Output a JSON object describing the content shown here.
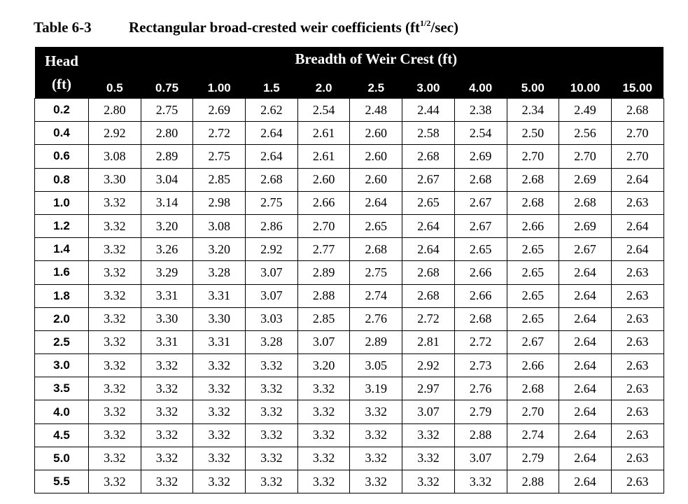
{
  "caption": {
    "number": "Table 6-3",
    "title": "Rectangular broad-crested weir coefficients (ft",
    "unit_exp": "1/2",
    "unit_tail": "/sec)"
  },
  "table": {
    "head_label_line1": "Head",
    "head_label_line2": "(ft)",
    "breadth_label": "Breadth of Weir Crest (ft)",
    "breadths": [
      "0.5",
      "0.75",
      "1.00",
      "1.5",
      "2.0",
      "2.5",
      "3.00",
      "4.00",
      "5.00",
      "10.00",
      "15.00"
    ],
    "rows": [
      {
        "head": "0.2",
        "values": [
          "2.80",
          "2.75",
          "2.69",
          "2.62",
          "2.54",
          "2.48",
          "2.44",
          "2.38",
          "2.34",
          "2.49",
          "2.68"
        ]
      },
      {
        "head": "0.4",
        "values": [
          "2.92",
          "2.80",
          "2.72",
          "2.64",
          "2.61",
          "2.60",
          "2.58",
          "2.54",
          "2.50",
          "2.56",
          "2.70"
        ]
      },
      {
        "head": "0.6",
        "values": [
          "3.08",
          "2.89",
          "2.75",
          "2.64",
          "2.61",
          "2.60",
          "2.68",
          "2.69",
          "2.70",
          "2.70",
          "2.70"
        ]
      },
      {
        "head": "0.8",
        "values": [
          "3.30",
          "3.04",
          "2.85",
          "2.68",
          "2.60",
          "2.60",
          "2.67",
          "2.68",
          "2.68",
          "2.69",
          "2.64"
        ]
      },
      {
        "head": "1.0",
        "values": [
          "3.32",
          "3.14",
          "2.98",
          "2.75",
          "2.66",
          "2.64",
          "2.65",
          "2.67",
          "2.68",
          "2.68",
          "2.63"
        ]
      },
      {
        "head": "1.2",
        "values": [
          "3.32",
          "3.20",
          "3.08",
          "2.86",
          "2.70",
          "2.65",
          "2.64",
          "2.67",
          "2.66",
          "2.69",
          "2.64"
        ]
      },
      {
        "head": "1.4",
        "values": [
          "3.32",
          "3.26",
          "3.20",
          "2.92",
          "2.77",
          "2.68",
          "2.64",
          "2.65",
          "2.65",
          "2.67",
          "2.64"
        ]
      },
      {
        "head": "1.6",
        "values": [
          "3.32",
          "3.29",
          "3.28",
          "3.07",
          "2.89",
          "2.75",
          "2.68",
          "2.66",
          "2.65",
          "2.64",
          "2.63"
        ]
      },
      {
        "head": "1.8",
        "values": [
          "3.32",
          "3.31",
          "3.31",
          "3.07",
          "2.88",
          "2.74",
          "2.68",
          "2.66",
          "2.65",
          "2.64",
          "2.63"
        ]
      },
      {
        "head": "2.0",
        "values": [
          "3.32",
          "3.30",
          "3.30",
          "3.03",
          "2.85",
          "2.76",
          "2.72",
          "2.68",
          "2.65",
          "2.64",
          "2.63"
        ]
      },
      {
        "head": "2.5",
        "values": [
          "3.32",
          "3.31",
          "3.31",
          "3.28",
          "3.07",
          "2.89",
          "2.81",
          "2.72",
          "2.67",
          "2.64",
          "2.63"
        ]
      },
      {
        "head": "3.0",
        "values": [
          "3.32",
          "3.32",
          "3.32",
          "3.32",
          "3.20",
          "3.05",
          "2.92",
          "2.73",
          "2.66",
          "2.64",
          "2.63"
        ]
      },
      {
        "head": "3.5",
        "values": [
          "3.32",
          "3.32",
          "3.32",
          "3.32",
          "3.32",
          "3.19",
          "2.97",
          "2.76",
          "2.68",
          "2.64",
          "2.63"
        ]
      },
      {
        "head": "4.0",
        "values": [
          "3.32",
          "3.32",
          "3.32",
          "3.32",
          "3.32",
          "3.32",
          "3.07",
          "2.79",
          "2.70",
          "2.64",
          "2.63"
        ]
      },
      {
        "head": "4.5",
        "values": [
          "3.32",
          "3.32",
          "3.32",
          "3.32",
          "3.32",
          "3.32",
          "3.32",
          "2.88",
          "2.74",
          "2.64",
          "2.63"
        ]
      },
      {
        "head": "5.0",
        "values": [
          "3.32",
          "3.32",
          "3.32",
          "3.32",
          "3.32",
          "3.32",
          "3.32",
          "3.07",
          "2.79",
          "2.64",
          "2.63"
        ]
      },
      {
        "head": "5.5",
        "values": [
          "3.32",
          "3.32",
          "3.32",
          "3.32",
          "3.32",
          "3.32",
          "3.32",
          "3.32",
          "2.88",
          "2.64",
          "2.63"
        ]
      }
    ]
  }
}
